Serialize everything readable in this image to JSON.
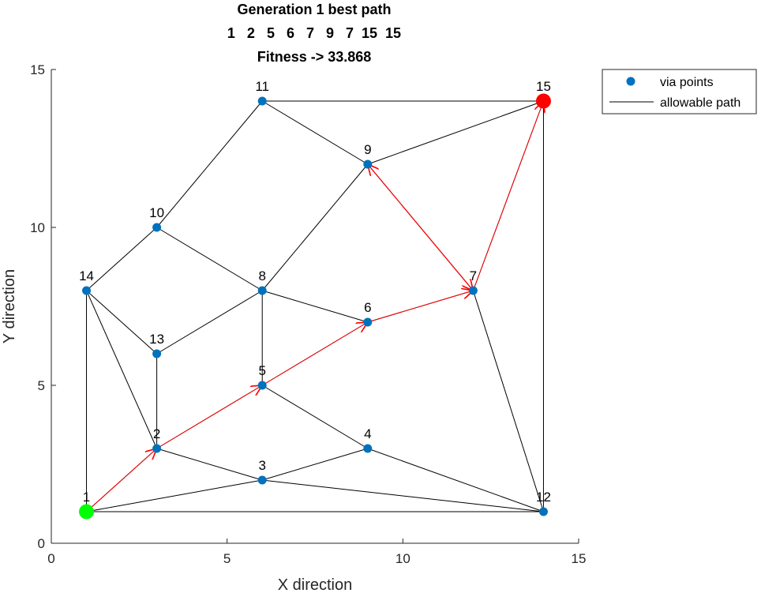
{
  "chart_data": {
    "type": "scatter",
    "title_lines": [
      "Generation 1 best path",
      "1   2   5   6   7   9   7  15  15",
      "Fitness -> 33.868"
    ],
    "xlabel": "X direction",
    "ylabel": "Y direction",
    "xlim": [
      0,
      15
    ],
    "ylim": [
      0,
      15
    ],
    "xticks": [
      0,
      5,
      10,
      15
    ],
    "yticks": [
      0,
      5,
      10,
      15
    ],
    "grid": false,
    "legend_position": "outside-top-right",
    "legend": [
      {
        "label": "via points",
        "kind": "marker",
        "color": "#0072BD"
      },
      {
        "label": "allowable path",
        "kind": "line",
        "color": "#000000"
      }
    ],
    "nodes": [
      {
        "id": "1",
        "x": 1,
        "y": 1
      },
      {
        "id": "2",
        "x": 3,
        "y": 3
      },
      {
        "id": "3",
        "x": 6,
        "y": 2
      },
      {
        "id": "4",
        "x": 9,
        "y": 3
      },
      {
        "id": "5",
        "x": 6,
        "y": 5
      },
      {
        "id": "6",
        "x": 9,
        "y": 7
      },
      {
        "id": "7",
        "x": 12,
        "y": 8
      },
      {
        "id": "8",
        "x": 6,
        "y": 8
      },
      {
        "id": "9",
        "x": 9,
        "y": 12
      },
      {
        "id": "10",
        "x": 3,
        "y": 10
      },
      {
        "id": "11",
        "x": 6,
        "y": 14
      },
      {
        "id": "12",
        "x": 14,
        "y": 1
      },
      {
        "id": "13",
        "x": 3,
        "y": 6
      },
      {
        "id": "14",
        "x": 1,
        "y": 8
      },
      {
        "id": "15",
        "x": 14,
        "y": 14
      }
    ],
    "edges": [
      [
        "1",
        "2"
      ],
      [
        "1",
        "3"
      ],
      [
        "1",
        "12"
      ],
      [
        "1",
        "14"
      ],
      [
        "2",
        "3"
      ],
      [
        "2",
        "5"
      ],
      [
        "2",
        "13"
      ],
      [
        "2",
        "14"
      ],
      [
        "3",
        "4"
      ],
      [
        "3",
        "12"
      ],
      [
        "4",
        "5"
      ],
      [
        "4",
        "12"
      ],
      [
        "5",
        "6"
      ],
      [
        "5",
        "8"
      ],
      [
        "6",
        "7"
      ],
      [
        "6",
        "8"
      ],
      [
        "7",
        "9"
      ],
      [
        "7",
        "12"
      ],
      [
        "7",
        "15"
      ],
      [
        "8",
        "9"
      ],
      [
        "8",
        "10"
      ],
      [
        "8",
        "13"
      ],
      [
        "9",
        "11"
      ],
      [
        "9",
        "15"
      ],
      [
        "10",
        "11"
      ],
      [
        "10",
        "14"
      ],
      [
        "11",
        "15"
      ],
      [
        "12",
        "15"
      ],
      [
        "13",
        "14"
      ]
    ],
    "best_path": [
      "1",
      "2",
      "5",
      "6",
      "7",
      "9",
      "7",
      "15",
      "15"
    ],
    "start_node": "1",
    "goal_node": "15",
    "colors": {
      "points": "#0072BD",
      "edges": "#000000",
      "path": "#FF0000",
      "start": "#00FF00",
      "goal": "#FF0000"
    }
  }
}
